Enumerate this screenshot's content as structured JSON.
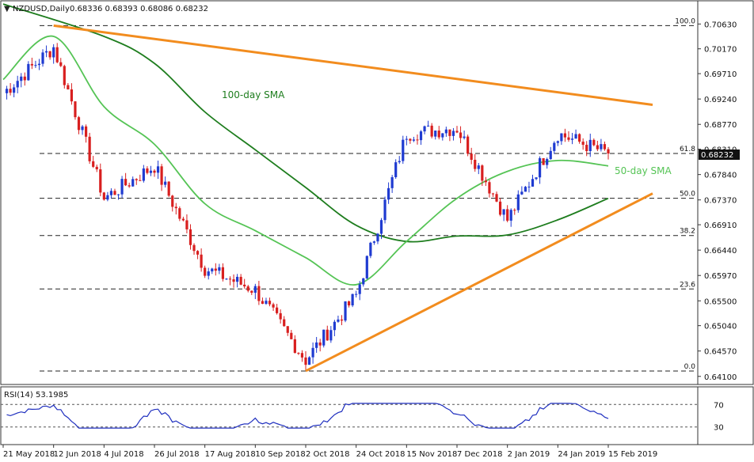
{
  "chart_data": [
    {
      "type": "candlestick",
      "title": "NZDUSD,Daily",
      "ohlc_header": "0.68336 0.68393 0.68086 0.68232",
      "last_price_label": "0.68232",
      "ylim": [
        0.6395,
        0.7106
      ],
      "yticks": [
        "0.70630",
        "0.70170",
        "0.69710",
        "0.69240",
        "0.68770",
        "0.68310",
        "0.67840",
        "0.67370",
        "0.66910",
        "0.66440",
        "0.65970",
        "0.65500",
        "0.65040",
        "0.64570",
        "0.64100"
      ],
      "xticks": [
        "21 May 2018",
        "12 Jun 2018",
        "4 Jul 2018",
        "26 Jul 2018",
        "17 Aug 2018",
        "10 Sep 2018",
        "2 Oct 2018",
        "24 Oct 2018",
        "15 Nov 2018",
        "7 Dec 2018",
        "2 Jan 2019",
        "24 Jan 2019",
        "15 Feb 2019"
      ],
      "fibonacci_levels": [
        {
          "label": "100.0",
          "value": 0.706
        },
        {
          "label": "61.8",
          "value": 0.6823
        },
        {
          "label": "50.0",
          "value": 0.674
        },
        {
          "label": "38.2",
          "value": 0.6671
        },
        {
          "label": "23.6",
          "value": 0.6572
        },
        {
          "label": "0.0",
          "value": 0.642
        }
      ],
      "anchors": [
        {
          "x": "21 May 2018",
          "close": 0.6935
        },
        {
          "x": "12 Jun 2018",
          "close": 0.702
        },
        {
          "x": "4 Jul 2018",
          "close": 0.674
        },
        {
          "x": "26 Jul 2018",
          "close": 0.68
        },
        {
          "x": "17 Aug 2018",
          "close": 0.661
        },
        {
          "x": "10 Sep 2018",
          "close": 0.657
        },
        {
          "x": "2 Oct 2018",
          "close": 0.644
        },
        {
          "x": "24 Oct 2018",
          "close": 0.656
        },
        {
          "x": "15 Nov 2018",
          "close": 0.686
        },
        {
          "x": "7 Dec 2018",
          "close": 0.687
        },
        {
          "x": "2 Jan 2019",
          "close": 0.67
        },
        {
          "x": "24 Jan 2019",
          "close": 0.686
        },
        {
          "x": "15 Feb 2019",
          "close": 0.6823
        }
      ],
      "sma": [
        {
          "name": "100-day SMA",
          "color": "#1e7d1e",
          "points": [
            [
              "21 May 2018",
              0.71
            ],
            [
              "4 Jul 2018",
              0.704
            ],
            [
              "26 Jul 2018",
              0.699
            ],
            [
              "17 Aug 2018",
              0.69
            ],
            [
              "10 Sep 2018",
              0.683
            ],
            [
              "2 Oct 2018",
              0.676
            ],
            [
              "24 Oct 2018",
              0.669
            ],
            [
              "15 Nov 2018",
              0.666
            ],
            [
              "7 Dec 2018",
              0.667
            ],
            [
              "2 Jan 2019",
              0.6672
            ],
            [
              "24 Jan 2019",
              0.67
            ],
            [
              "15 Feb 2019",
              0.674
            ]
          ]
        },
        {
          "name": "50-day SMA",
          "color": "#55c455",
          "points": [
            [
              "21 May 2018",
              0.696
            ],
            [
              "12 Jun 2018",
              0.704
            ],
            [
              "4 Jul 2018",
              0.691
            ],
            [
              "26 Jul 2018",
              0.684
            ],
            [
              "17 Aug 2018",
              0.673
            ],
            [
              "10 Sep 2018",
              0.668
            ],
            [
              "2 Oct 2018",
              0.663
            ],
            [
              "24 Oct 2018",
              0.658
            ],
            [
              "15 Nov 2018",
              0.666
            ],
            [
              "7 Dec 2018",
              0.674
            ],
            [
              "2 Jan 2019",
              0.679
            ],
            [
              "24 Jan 2019",
              0.681
            ],
            [
              "15 Feb 2019",
              0.68
            ]
          ]
        }
      ],
      "trendlines": [
        {
          "name": "resistance",
          "color": "#f28c1e",
          "from": [
            "12 Jun 2018",
            0.706
          ],
          "to": [
            "15 Feb 2019",
            0.6925
          ]
        },
        {
          "name": "support",
          "color": "#f28c1e",
          "from": [
            "2 Oct 2018",
            0.642
          ],
          "to": [
            "15 Feb 2019",
            0.6705
          ]
        }
      ],
      "annotations": [
        {
          "text": "100-day SMA",
          "color": "#1e7d1e"
        },
        {
          "text": "50-day SMA",
          "color": "#55c455"
        }
      ],
      "colors": {
        "up": "#1f3bd1",
        "down": "#d81f1f",
        "fib": "#222222"
      }
    },
    {
      "type": "line",
      "title": "RSI(14) 53.1985",
      "series": [
        {
          "name": "RSI(14)",
          "color": "#1f2fbf"
        }
      ],
      "ylim": [
        0,
        100
      ],
      "levels": [
        70,
        30
      ],
      "yticks": [
        "70",
        "30"
      ],
      "last_value": 53.1985
    }
  ]
}
